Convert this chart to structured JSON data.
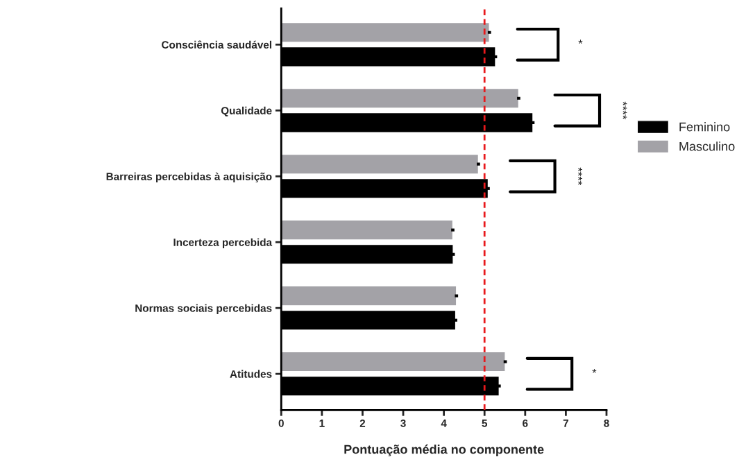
{
  "chart_data": {
    "type": "bar",
    "orientation": "horizontal",
    "xlabel": "Pontuação média no componente",
    "categories": [
      "Consciência saudável",
      "Qualidade",
      "Barreiras percebidas à aquisição",
      "Incerteza percebida",
      "Normas sociais percebidas",
      "Atitudes"
    ],
    "series": [
      {
        "name": "Feminino",
        "color": "#000000",
        "values": [
          5.27,
          6.19,
          5.09,
          4.23,
          4.29,
          5.36
        ],
        "errors": [
          0.04,
          0.04,
          0.04,
          0.04,
          0.04,
          0.04
        ]
      },
      {
        "name": "Masculino",
        "color": "#a3a2a7",
        "values": [
          5.12,
          5.84,
          4.85,
          4.22,
          4.31,
          5.51
        ],
        "errors": [
          0.04,
          0.04,
          0.04,
          0.04,
          0.04,
          0.04
        ]
      }
    ],
    "xlim": [
      0,
      8
    ],
    "xticks": [
      0,
      1,
      2,
      3,
      4,
      5,
      6,
      7,
      8
    ],
    "ref_lines": [
      {
        "axis": "x",
        "value": 5,
        "color": "#e8191c",
        "line_style": "dashed"
      }
    ],
    "annotations": [
      "*",
      "****",
      "****",
      "*"
    ],
    "grid": false,
    "legend": "right"
  }
}
